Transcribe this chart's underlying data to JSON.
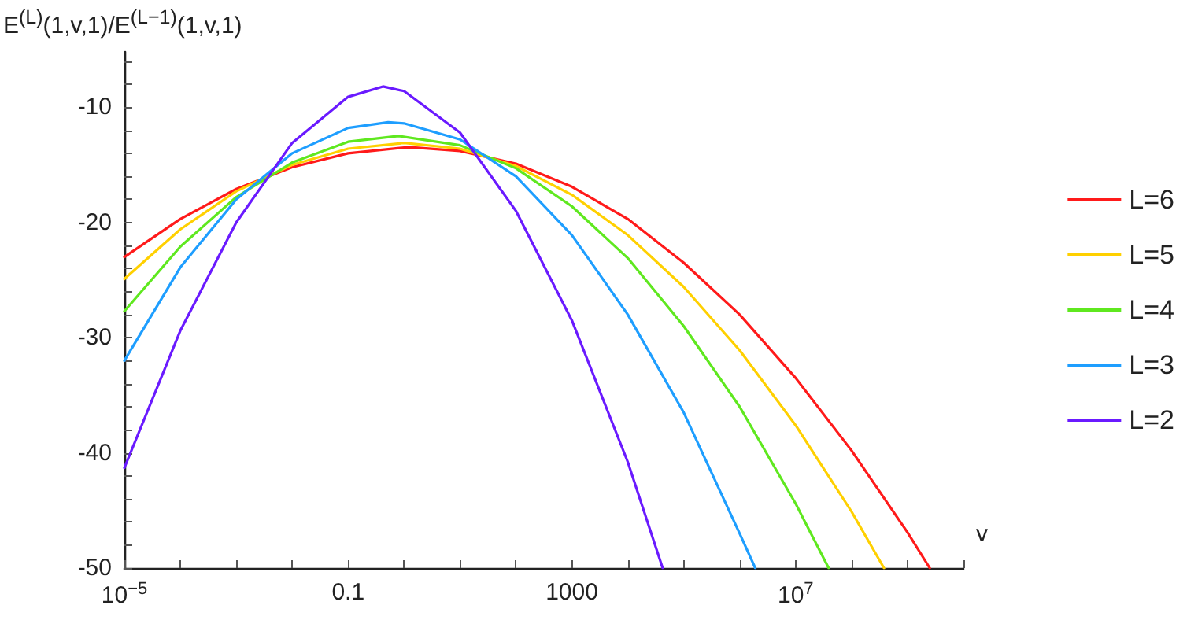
{
  "chart_data": {
    "type": "line",
    "xlabel": "v",
    "ylabel": "E$^{(L)}$(1,v,1)/E$^{(L−1)}$(1,v,1)",
    "log": "x",
    "xlim": [
      1e-05,
      10000000000.0
    ],
    "ylim": [
      -50,
      -5.2
    ],
    "xticks": [
      {
        "value": 1e-05,
        "label": "10$^{−5}$"
      },
      {
        "value": 0.0001,
        "label": null
      },
      {
        "value": 0.001,
        "label": null
      },
      {
        "value": 0.01,
        "label": null
      },
      {
        "value": 0.1,
        "label": "0.1"
      },
      {
        "value": 1,
        "label": null
      },
      {
        "value": 10,
        "label": null
      },
      {
        "value": 100,
        "label": null
      },
      {
        "value": 1000,
        "label": "1000"
      },
      {
        "value": 10000.0,
        "label": null
      },
      {
        "value": 100000.0,
        "label": null
      },
      {
        "value": 1000000.0,
        "label": null
      },
      {
        "value": 10000000.0,
        "label": "10$^{7}$"
      },
      {
        "value": 100000000.0,
        "label": null
      },
      {
        "value": 1000000000.0,
        "label": null
      },
      {
        "value": 10000000000.0,
        "label": null
      }
    ],
    "yticks": [
      -50,
      {
        "value": -48,
        "label": null
      },
      {
        "value": -46,
        "label": null
      },
      {
        "value": -44,
        "label": null
      },
      {
        "value": -42,
        "label": null
      },
      -40,
      {
        "value": -38,
        "label": null
      },
      {
        "value": -36,
        "label": null
      },
      {
        "value": -34,
        "label": null
      },
      {
        "value": -32,
        "label": null
      },
      -30,
      {
        "value": -28,
        "label": null
      },
      {
        "value": -26,
        "label": null
      },
      {
        "value": -24,
        "label": null
      },
      {
        "value": -22,
        "label": null
      },
      -20,
      {
        "value": -18,
        "label": null
      },
      {
        "value": -16,
        "label": null
      },
      {
        "value": -14,
        "label": null
      },
      {
        "value": -12,
        "label": null
      },
      -10,
      {
        "value": -8,
        "label": null
      },
      {
        "value": -6,
        "label": null
      }
    ],
    "grid": false,
    "legend": "right",
    "marker": "none",
    "line_style": "solid",
    "series": [
      {
        "name": "L=6",
        "color": "#ff1a1a",
        "x": [
          1e-05,
          0.0001,
          0.001,
          0.01,
          0.1,
          1,
          1.6,
          10,
          100,
          1000,
          10000.0,
          100000.0,
          1000000.0,
          10000000.0,
          100000000.0,
          1000000000.0,
          2500000000.0
        ],
        "values": [
          -23.0,
          -19.7,
          -17.1,
          -15.2,
          -14.0,
          -13.5,
          -13.5,
          -13.8,
          -14.9,
          -16.9,
          -19.7,
          -23.5,
          -28.0,
          -33.5,
          -39.8,
          -46.9,
          -50
        ]
      },
      {
        "name": "L=5",
        "color": "#ffd000",
        "x": [
          1e-05,
          0.0001,
          0.001,
          0.01,
          0.1,
          1,
          10,
          100,
          1000,
          10000.0,
          100000.0,
          1000000.0,
          10000000.0,
          100000000.0,
          380000000.0
        ],
        "values": [
          -24.9,
          -20.6,
          -17.3,
          -15.0,
          -13.6,
          -13.1,
          -13.6,
          -15.1,
          -17.6,
          -21.1,
          -25.6,
          -31.1,
          -37.6,
          -45.1,
          -50
        ]
      },
      {
        "name": "L=4",
        "color": "#5fe81f",
        "x": [
          1e-05,
          0.0001,
          0.001,
          0.01,
          0.1,
          0.79,
          10,
          100,
          1000,
          10000.0,
          100000.0,
          1000000.0,
          10000000.0,
          39000000.0
        ],
        "values": [
          -27.7,
          -22.1,
          -17.8,
          -14.8,
          -13.0,
          -12.5,
          -13.3,
          -15.3,
          -18.6,
          -23.1,
          -29.0,
          -36.0,
          -44.4,
          -50
        ]
      },
      {
        "name": "L=3",
        "color": "#1e9eff",
        "x": [
          1e-05,
          0.0001,
          0.001,
          0.01,
          0.1,
          0.52,
          1,
          10,
          100,
          1000,
          10000.0,
          100000.0,
          1000000.0,
          1900000.0
        ],
        "values": [
          -32.0,
          -23.9,
          -18.0,
          -14.0,
          -11.8,
          -11.3,
          -11.4,
          -12.8,
          -16.0,
          -21.1,
          -28.0,
          -36.5,
          -47.0,
          -50
        ]
      },
      {
        "name": "L=2",
        "color": "#6a1aff",
        "x": [
          1e-05,
          0.0001,
          0.001,
          0.01,
          0.1,
          0.42,
          1,
          10,
          100,
          1000,
          10000.0,
          42000.0
        ],
        "values": [
          -41.3,
          -29.4,
          -20.0,
          -13.1,
          -9.1,
          -8.2,
          -8.6,
          -12.2,
          -19.0,
          -28.5,
          -40.8,
          -50
        ]
      }
    ]
  }
}
